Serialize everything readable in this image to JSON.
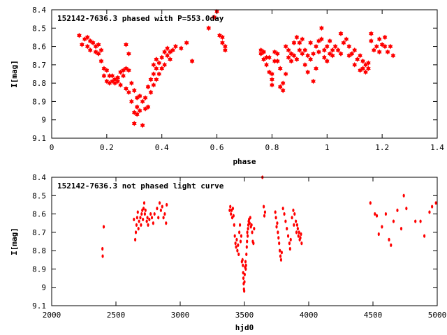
{
  "chart_data": [
    {
      "type": "scatter",
      "title": "152142-7636.3 phased with P=553.0day",
      "xlabel": "phase",
      "ylabel": "I[mag]",
      "xlim": [
        0,
        1.4
      ],
      "ylim": [
        9.1,
        8.4
      ],
      "y_inverted": true,
      "x_ticks": [
        "0",
        "0.2",
        "0.4",
        "0.6",
        "0.8",
        "1",
        "1.2",
        "1.4"
      ],
      "y_ticks": [
        "8.4",
        "8.5",
        "8.6",
        "8.7",
        "8.8",
        "8.9",
        "9",
        "9.1"
      ],
      "marker": "star",
      "color": "#ff0000",
      "grid": false,
      "points": [
        [
          0.1,
          8.54
        ],
        [
          0.11,
          8.59
        ],
        [
          0.12,
          8.56
        ],
        [
          0.13,
          8.55
        ],
        [
          0.13,
          8.6
        ],
        [
          0.14,
          8.57
        ],
        [
          0.14,
          8.62
        ],
        [
          0.15,
          8.58
        ],
        [
          0.16,
          8.6
        ],
        [
          0.16,
          8.63
        ],
        [
          0.17,
          8.59
        ],
        [
          0.17,
          8.64
        ],
        [
          0.18,
          8.62
        ],
        [
          0.18,
          8.68
        ],
        [
          0.19,
          8.72
        ],
        [
          0.19,
          8.76
        ],
        [
          0.2,
          8.73
        ],
        [
          0.2,
          8.79
        ],
        [
          0.21,
          8.76
        ],
        [
          0.21,
          8.8
        ],
        [
          0.22,
          8.79
        ],
        [
          0.22,
          8.76
        ],
        [
          0.23,
          8.78
        ],
        [
          0.23,
          8.8
        ],
        [
          0.24,
          8.77
        ],
        [
          0.24,
          8.79
        ],
        [
          0.25,
          8.74
        ],
        [
          0.25,
          8.81
        ],
        [
          0.26,
          8.73
        ],
        [
          0.26,
          8.76
        ],
        [
          0.27,
          8.72
        ],
        [
          0.27,
          8.83
        ],
        [
          0.28,
          8.73
        ],
        [
          0.28,
          8.85
        ],
        [
          0.29,
          8.8
        ],
        [
          0.29,
          8.9
        ],
        [
          0.3,
          8.84
        ],
        [
          0.3,
          8.96
        ],
        [
          0.3,
          9.02
        ],
        [
          0.31,
          8.88
        ],
        [
          0.31,
          8.93
        ],
        [
          0.31,
          8.97
        ],
        [
          0.32,
          8.87
        ],
        [
          0.32,
          8.95
        ],
        [
          0.33,
          9.03
        ],
        [
          0.33,
          8.9
        ],
        [
          0.34,
          8.94
        ],
        [
          0.34,
          8.88
        ],
        [
          0.35,
          8.93
        ],
        [
          0.35,
          8.82
        ],
        [
          0.36,
          8.85
        ],
        [
          0.36,
          8.78
        ],
        [
          0.37,
          8.81
        ],
        [
          0.37,
          8.75
        ],
        [
          0.37,
          8.7
        ],
        [
          0.38,
          8.78
        ],
        [
          0.38,
          8.72
        ],
        [
          0.38,
          8.67
        ],
        [
          0.39,
          8.75
        ],
        [
          0.39,
          8.69
        ],
        [
          0.4,
          8.66
        ],
        [
          0.4,
          8.72
        ],
        [
          0.41,
          8.63
        ],
        [
          0.41,
          8.7
        ],
        [
          0.42,
          8.65
        ],
        [
          0.42,
          8.61
        ],
        [
          0.43,
          8.67
        ],
        [
          0.43,
          8.63
        ],
        [
          0.44,
          8.62
        ],
        [
          0.45,
          8.6
        ],
        [
          0.47,
          8.61
        ],
        [
          0.49,
          8.58
        ],
        [
          0.51,
          8.68
        ],
        [
          0.27,
          8.59
        ],
        [
          0.28,
          8.64
        ],
        [
          0.57,
          8.5
        ],
        [
          0.59,
          8.44
        ],
        [
          0.6,
          8.41
        ],
        [
          0.61,
          8.54
        ],
        [
          0.62,
          8.55
        ],
        [
          0.62,
          8.58
        ],
        [
          0.63,
          8.6
        ],
        [
          0.63,
          8.62
        ],
        [
          0.76,
          8.64
        ],
        [
          0.76,
          8.62
        ],
        [
          0.77,
          8.67
        ],
        [
          0.77,
          8.63
        ],
        [
          0.78,
          8.66
        ],
        [
          0.78,
          8.7
        ],
        [
          0.79,
          8.66
        ],
        [
          0.79,
          8.74
        ],
        [
          0.8,
          8.75
        ],
        [
          0.8,
          8.78
        ],
        [
          0.8,
          8.81
        ],
        [
          0.81,
          8.68
        ],
        [
          0.81,
          8.63
        ],
        [
          0.82,
          8.64
        ],
        [
          0.82,
          8.68
        ],
        [
          0.83,
          8.72
        ],
        [
          0.83,
          8.82
        ],
        [
          0.84,
          8.84
        ],
        [
          0.84,
          8.8
        ],
        [
          0.85,
          8.75
        ],
        [
          0.85,
          8.6
        ],
        [
          0.86,
          8.62
        ],
        [
          0.86,
          8.66
        ],
        [
          0.87,
          8.64
        ],
        [
          0.87,
          8.68
        ],
        [
          0.88,
          8.65
        ],
        [
          0.88,
          8.58
        ],
        [
          0.89,
          8.55
        ],
        [
          0.89,
          8.67
        ],
        [
          0.9,
          8.58
        ],
        [
          0.9,
          8.62
        ],
        [
          0.91,
          8.56
        ],
        [
          0.91,
          8.64
        ],
        [
          0.92,
          8.62
        ],
        [
          0.92,
          8.7
        ],
        [
          0.93,
          8.74
        ],
        [
          0.93,
          8.65
        ],
        [
          0.94,
          8.58
        ],
        [
          0.94,
          8.67
        ],
        [
          0.95,
          8.64
        ],
        [
          0.95,
          8.79
        ],
        [
          0.96,
          8.72
        ],
        [
          0.96,
          8.6
        ],
        [
          0.97,
          8.57
        ],
        [
          0.97,
          8.63
        ],
        [
          0.98,
          8.5
        ],
        [
          0.98,
          8.56
        ],
        [
          0.99,
          8.62
        ],
        [
          0.99,
          8.66
        ],
        [
          1.0,
          8.6
        ],
        [
          1.0,
          8.68
        ],
        [
          1.01,
          8.64
        ],
        [
          1.01,
          8.57
        ],
        [
          1.02,
          8.62
        ],
        [
          1.02,
          8.65
        ],
        [
          1.03,
          8.6
        ],
        [
          1.04,
          8.62
        ],
        [
          1.05,
          8.64
        ],
        [
          1.05,
          8.53
        ],
        [
          1.06,
          8.58
        ],
        [
          1.07,
          8.56
        ],
        [
          1.08,
          8.6
        ],
        [
          1.09,
          8.64
        ],
        [
          1.1,
          8.62
        ],
        [
          1.1,
          8.7
        ],
        [
          1.11,
          8.67
        ],
        [
          1.12,
          8.73
        ],
        [
          1.12,
          8.65
        ],
        [
          1.13,
          8.72
        ],
        [
          1.13,
          8.68
        ],
        [
          1.14,
          8.7
        ],
        [
          1.14,
          8.74
        ],
        [
          1.15,
          8.72
        ],
        [
          1.15,
          8.69
        ],
        [
          1.16,
          8.53
        ],
        [
          1.16,
          8.57
        ],
        [
          1.17,
          8.62
        ],
        [
          1.18,
          8.6
        ],
        [
          1.19,
          8.63
        ],
        [
          1.19,
          8.56
        ],
        [
          1.2,
          8.59
        ],
        [
          1.21,
          8.55
        ],
        [
          1.21,
          8.6
        ],
        [
          1.22,
          8.63
        ],
        [
          1.23,
          8.6
        ],
        [
          1.24,
          8.65
        ],
        [
          1.08,
          8.65
        ]
      ]
    },
    {
      "type": "scatter",
      "title": "152142-7636.3 not phased light curve",
      "xlabel": "hjd0",
      "ylabel": "I[mag]",
      "xlim": [
        2000,
        5000
      ],
      "ylim": [
        9.1,
        8.4
      ],
      "y_inverted": true,
      "x_ticks": [
        "2000",
        "2500",
        "3000",
        "3500",
        "4000",
        "4500",
        "5000"
      ],
      "y_ticks": [
        "8.4",
        "8.5",
        "8.6",
        "8.7",
        "8.8",
        "8.9",
        "9",
        "9.1"
      ],
      "marker": "dot",
      "color": "#ff0000",
      "grid": false,
      "points": [
        [
          2395,
          8.79
        ],
        [
          2397,
          8.83
        ],
        [
          2405,
          8.67
        ],
        [
          2640,
          8.63
        ],
        [
          2650,
          8.74
        ],
        [
          2655,
          8.7
        ],
        [
          2660,
          8.66
        ],
        [
          2665,
          8.62
        ],
        [
          2670,
          8.59
        ],
        [
          2675,
          8.68
        ],
        [
          2680,
          8.64
        ],
        [
          2690,
          8.62
        ],
        [
          2695,
          8.66
        ],
        [
          2700,
          8.6
        ],
        [
          2705,
          8.58
        ],
        [
          2710,
          8.63
        ],
        [
          2715,
          8.57
        ],
        [
          2720,
          8.54
        ],
        [
          2725,
          8.6
        ],
        [
          2730,
          8.58
        ],
        [
          2740,
          8.64
        ],
        [
          2745,
          8.62
        ],
        [
          2750,
          8.66
        ],
        [
          2760,
          8.63
        ],
        [
          2770,
          8.6
        ],
        [
          2780,
          8.62
        ],
        [
          2790,
          8.65
        ],
        [
          2800,
          8.6
        ],
        [
          2820,
          8.57
        ],
        [
          2830,
          8.62
        ],
        [
          2840,
          8.54
        ],
        [
          2850,
          8.58
        ],
        [
          2860,
          8.56
        ],
        [
          2870,
          8.62
        ],
        [
          2880,
          8.6
        ],
        [
          2890,
          8.65
        ],
        [
          2895,
          8.55
        ],
        [
          3385,
          8.58
        ],
        [
          3390,
          8.56
        ],
        [
          3395,
          8.6
        ],
        [
          3400,
          8.58
        ],
        [
          3405,
          8.62
        ],
        [
          3410,
          8.57
        ],
        [
          3415,
          8.61
        ],
        [
          3420,
          8.66
        ],
        [
          3425,
          8.72
        ],
        [
          3430,
          8.76
        ],
        [
          3435,
          8.78
        ],
        [
          3440,
          8.74
        ],
        [
          3445,
          8.8
        ],
        [
          3450,
          8.77
        ],
        [
          3455,
          8.82
        ],
        [
          3460,
          8.7
        ],
        [
          3465,
          8.66
        ],
        [
          3470,
          8.75
        ],
        [
          3475,
          8.72
        ],
        [
          3480,
          8.86
        ],
        [
          3485,
          8.85
        ],
        [
          3488,
          8.88
        ],
        [
          3490,
          8.92
        ],
        [
          3492,
          8.95
        ],
        [
          3494,
          8.98
        ],
        [
          3496,
          9.01
        ],
        [
          3498,
          9.02
        ],
        [
          3500,
          8.97
        ],
        [
          3502,
          8.93
        ],
        [
          3505,
          8.89
        ],
        [
          3508,
          8.86
        ],
        [
          3510,
          8.9
        ],
        [
          3512,
          8.88
        ],
        [
          3515,
          8.82
        ],
        [
          3518,
          8.78
        ],
        [
          3520,
          8.75
        ],
        [
          3522,
          8.7
        ],
        [
          3525,
          8.72
        ],
        [
          3528,
          8.68
        ],
        [
          3530,
          8.66
        ],
        [
          3533,
          8.64
        ],
        [
          3536,
          8.63
        ],
        [
          3540,
          8.65
        ],
        [
          3545,
          8.62
        ],
        [
          3550,
          8.67
        ],
        [
          3555,
          8.66
        ],
        [
          3560,
          8.7
        ],
        [
          3565,
          8.75
        ],
        [
          3570,
          8.76
        ],
        [
          3575,
          8.68
        ],
        [
          3640,
          8.4
        ],
        [
          3650,
          8.56
        ],
        [
          3655,
          8.61
        ],
        [
          3660,
          8.59
        ],
        [
          3740,
          8.59
        ],
        [
          3745,
          8.62
        ],
        [
          3750,
          8.67
        ],
        [
          3755,
          8.65
        ],
        [
          3760,
          8.7
        ],
        [
          3765,
          8.73
        ],
        [
          3770,
          8.76
        ],
        [
          3775,
          8.8
        ],
        [
          3780,
          8.83
        ],
        [
          3785,
          8.85
        ],
        [
          3790,
          8.81
        ],
        [
          3800,
          8.57
        ],
        [
          3810,
          8.6
        ],
        [
          3820,
          8.64
        ],
        [
          3830,
          8.68
        ],
        [
          3840,
          8.72
        ],
        [
          3850,
          8.76
        ],
        [
          3855,
          8.79
        ],
        [
          3860,
          8.74
        ],
        [
          3870,
          8.62
        ],
        [
          3880,
          8.58
        ],
        [
          3885,
          8.66
        ],
        [
          3890,
          8.6
        ],
        [
          3900,
          8.64
        ],
        [
          3905,
          8.7
        ],
        [
          3910,
          8.66
        ],
        [
          3915,
          8.68
        ],
        [
          3920,
          8.72
        ],
        [
          3925,
          8.7
        ],
        [
          3930,
          8.74
        ],
        [
          3935,
          8.73
        ],
        [
          3940,
          8.71
        ],
        [
          3945,
          8.76
        ],
        [
          4480,
          8.54
        ],
        [
          4515,
          8.6
        ],
        [
          4530,
          8.61
        ],
        [
          4545,
          8.71
        ],
        [
          4570,
          8.67
        ],
        [
          4600,
          8.6
        ],
        [
          4625,
          8.74
        ],
        [
          4640,
          8.77
        ],
        [
          4660,
          8.64
        ],
        [
          4690,
          8.58
        ],
        [
          4720,
          8.68
        ],
        [
          4740,
          8.5
        ],
        [
          4760,
          8.57
        ],
        [
          4830,
          8.64
        ],
        [
          4870,
          8.64
        ],
        [
          4900,
          8.72
        ],
        [
          4940,
          8.59
        ],
        [
          4960,
          8.56
        ],
        [
          4990,
          8.54
        ]
      ]
    }
  ]
}
